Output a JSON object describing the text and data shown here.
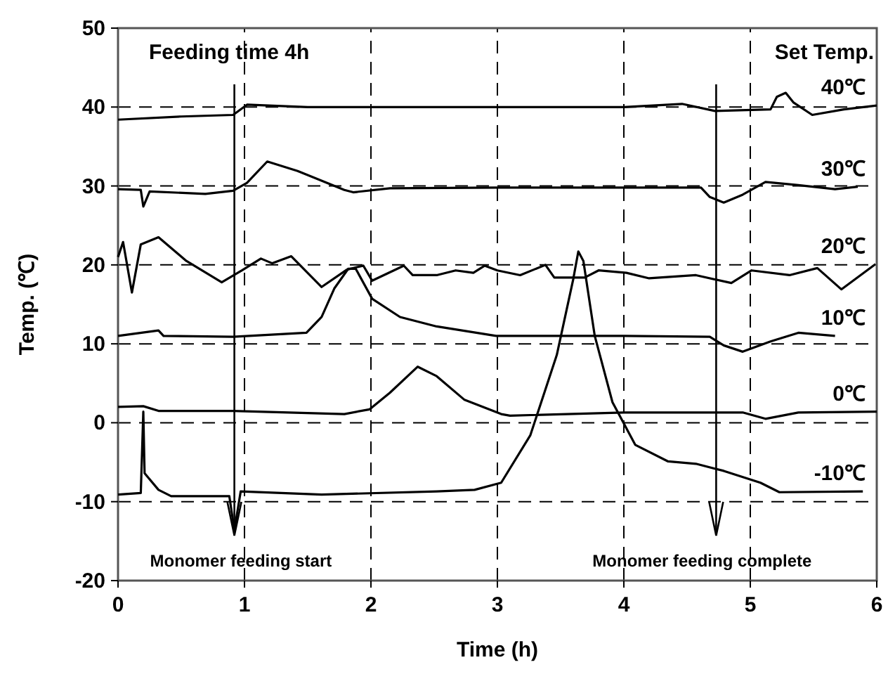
{
  "chart_data": {
    "type": "line",
    "xlabel": "Time (h)",
    "ylabel": "Temp. (℃)",
    "xlim": [
      0,
      6
    ],
    "ylim": [
      -20,
      50
    ],
    "xticks": [
      0,
      1,
      2,
      3,
      4,
      5,
      6
    ],
    "yticks": [
      -20,
      -10,
      0,
      10,
      20,
      30,
      40,
      50
    ],
    "grid": true,
    "line_style": "solid",
    "marker": "none",
    "annotations": [
      "Feeding time 4h",
      "Set Temp."
    ],
    "ref_lines": [
      {
        "axis": "x",
        "value": 0.92,
        "label": "Monomer feeding start"
      },
      {
        "axis": "x",
        "value": 4.73,
        "label": "Monomer feeding complete"
      }
    ],
    "series": [
      {
        "name": "40℃",
        "color": "#000000",
        "x": [
          0,
          0.5,
          0.91,
          1.02,
          1.5,
          2,
          3,
          4,
          4.46,
          4.72,
          5.16,
          5.21,
          5.28,
          5.34,
          5.49,
          5.74,
          6
        ],
        "values": [
          38.4,
          38.8,
          39,
          40.3,
          40,
          40,
          40,
          40,
          40.4,
          39.5,
          39.7,
          41.3,
          41.8,
          40.6,
          39,
          39.7,
          40.2
        ]
      },
      {
        "name": "30℃",
        "color": "#000000",
        "x": [
          0,
          0.18,
          0.2,
          0.25,
          0.69,
          0.91,
          1.02,
          1.18,
          1.42,
          1.79,
          1.86,
          2.15,
          3,
          4,
          4.61,
          4.68,
          4.79,
          4.94,
          5.12,
          5.38,
          5.67,
          5.85
        ],
        "values": [
          29.6,
          29.5,
          27.4,
          29.3,
          29,
          29.4,
          30.4,
          33.1,
          31.9,
          29.5,
          29.2,
          29.7,
          29.8,
          29.8,
          29.8,
          28.6,
          27.9,
          28.9,
          30.5,
          30.1,
          29.6,
          29.9
        ]
      },
      {
        "name": "20℃",
        "color": "#000000",
        "x": [
          0,
          0.04,
          0.11,
          0.18,
          0.32,
          0.54,
          0.82,
          0.98,
          1.13,
          1.22,
          1.37,
          1.61,
          1.81,
          1.94,
          2.01,
          2.26,
          2.33,
          2.52,
          2.67,
          2.81,
          2.9,
          3,
          3.18,
          3.38,
          3.45,
          3.69,
          3.8,
          4.02,
          4.2,
          4.57,
          4.85,
          5.01,
          5.31,
          5.53,
          5.72,
          5.99
        ],
        "values": [
          21,
          22.9,
          16.5,
          22.6,
          23.5,
          20.5,
          17.8,
          19.3,
          20.8,
          20.2,
          21.1,
          17.2,
          19.4,
          19.9,
          18,
          19.9,
          18.7,
          18.7,
          19.3,
          19,
          19.9,
          19.3,
          18.7,
          20,
          18.4,
          18.4,
          19.3,
          19,
          18.3,
          18.7,
          17.7,
          19.3,
          18.7,
          19.6,
          16.9,
          20.1
        ]
      },
      {
        "name": "10℃",
        "color": "#000000",
        "x": [
          0,
          0.32,
          0.36,
          0.91,
          1.49,
          1.61,
          1.71,
          1.82,
          1.88,
          2.01,
          2.23,
          2.52,
          2.99,
          4,
          4.68,
          4.79,
          4.94,
          5.16,
          5.38,
          5.67
        ],
        "values": [
          11,
          11.7,
          11,
          10.9,
          11.4,
          13.4,
          17,
          19.5,
          19.5,
          15.7,
          13.4,
          12.2,
          11,
          11,
          10.9,
          9.8,
          9,
          10.3,
          11.4,
          11
        ]
      },
      {
        "name": "0℃",
        "color": "#000000",
        "x": [
          0,
          0.2,
          0.32,
          0.91,
          1.79,
          1.99,
          2.15,
          2.37,
          2.52,
          2.74,
          3.03,
          3.1,
          4,
          4.94,
          5.12,
          5.38,
          6
        ],
        "values": [
          2,
          2.1,
          1.5,
          1.5,
          1.1,
          1.7,
          3.8,
          7.1,
          5.9,
          2.9,
          1.1,
          0.9,
          1.3,
          1.3,
          0.5,
          1.3,
          1.4
        ]
      },
      {
        "name": "-10℃",
        "color": "#000000",
        "x": [
          0,
          0.18,
          0.2,
          0.21,
          0.32,
          0.42,
          0.88,
          0.92,
          0.97,
          1.61,
          2.52,
          2.82,
          3.03,
          3.26,
          3.47,
          3.6,
          3.64,
          3.68,
          3.77,
          3.91,
          4.09,
          4.35,
          4.57,
          4.79,
          5.08,
          5.23,
          5.89
        ],
        "values": [
          -9.1,
          -8.9,
          1.4,
          -6.4,
          -8.5,
          -9.3,
          -9.3,
          -13.6,
          -8.7,
          -9.1,
          -8.7,
          -8.5,
          -7.6,
          -1.6,
          8.6,
          18.2,
          21.7,
          20.5,
          11,
          2.6,
          -2.8,
          -4.9,
          -5.2,
          -6.1,
          -7.6,
          -8.8,
          -8.7
        ]
      }
    ]
  }
}
